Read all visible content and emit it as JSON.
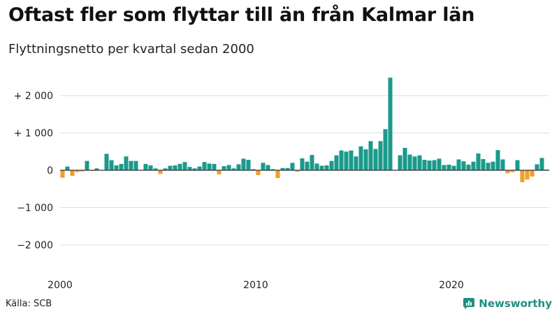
{
  "header": {
    "title": "Oftast fler som flyttar till än från Kalmar län",
    "subtitle": "Flyttningsnetto per kvartal sedan 2000"
  },
  "footer": {
    "source": "Källa: SCB",
    "brand": "Newsworthy"
  },
  "colors": {
    "positive": "#1a9a8b",
    "negative": "#f29d2a",
    "brand": "#1f8f80"
  },
  "chart_data": {
    "type": "bar",
    "xlabel": "",
    "ylabel": "",
    "ylim": [
      -2600,
      2600
    ],
    "y_ticks": [
      {
        "value": 2000,
        "label": "+ 2 000"
      },
      {
        "value": 1000,
        "label": "+ 1 000"
      },
      {
        "value": 0,
        "label": "0"
      },
      {
        "value": -1000,
        "label": "−1 000"
      },
      {
        "value": -2000,
        "label": "−2 000"
      }
    ],
    "x_ticks": [
      {
        "value": 2000,
        "label": "2000"
      },
      {
        "value": 2010,
        "label": "2010"
      },
      {
        "value": 2020,
        "label": "2020"
      }
    ],
    "x_start_year": 2000,
    "grid": true,
    "legend": "none",
    "values": [
      -200,
      100,
      -150,
      -50,
      -30,
      250,
      -20,
      50,
      -10,
      440,
      270,
      130,
      170,
      370,
      250,
      250,
      0,
      170,
      130,
      50,
      -100,
      50,
      120,
      130,
      170,
      220,
      90,
      50,
      100,
      220,
      180,
      170,
      -110,
      110,
      140,
      50,
      160,
      310,
      280,
      30,
      -130,
      200,
      140,
      30,
      -210,
      60,
      60,
      200,
      -40,
      320,
      230,
      410,
      180,
      120,
      130,
      250,
      400,
      530,
      500,
      530,
      370,
      640,
      560,
      780,
      570,
      780,
      1100,
      2480,
      0,
      400,
      600,
      420,
      370,
      400,
      280,
      260,
      270,
      310,
      140,
      150,
      120,
      290,
      240,
      150,
      230,
      450,
      300,
      200,
      230,
      540,
      290,
      -80,
      -50,
      270,
      -320,
      -250,
      -170,
      160,
      330,
      20
    ]
  }
}
